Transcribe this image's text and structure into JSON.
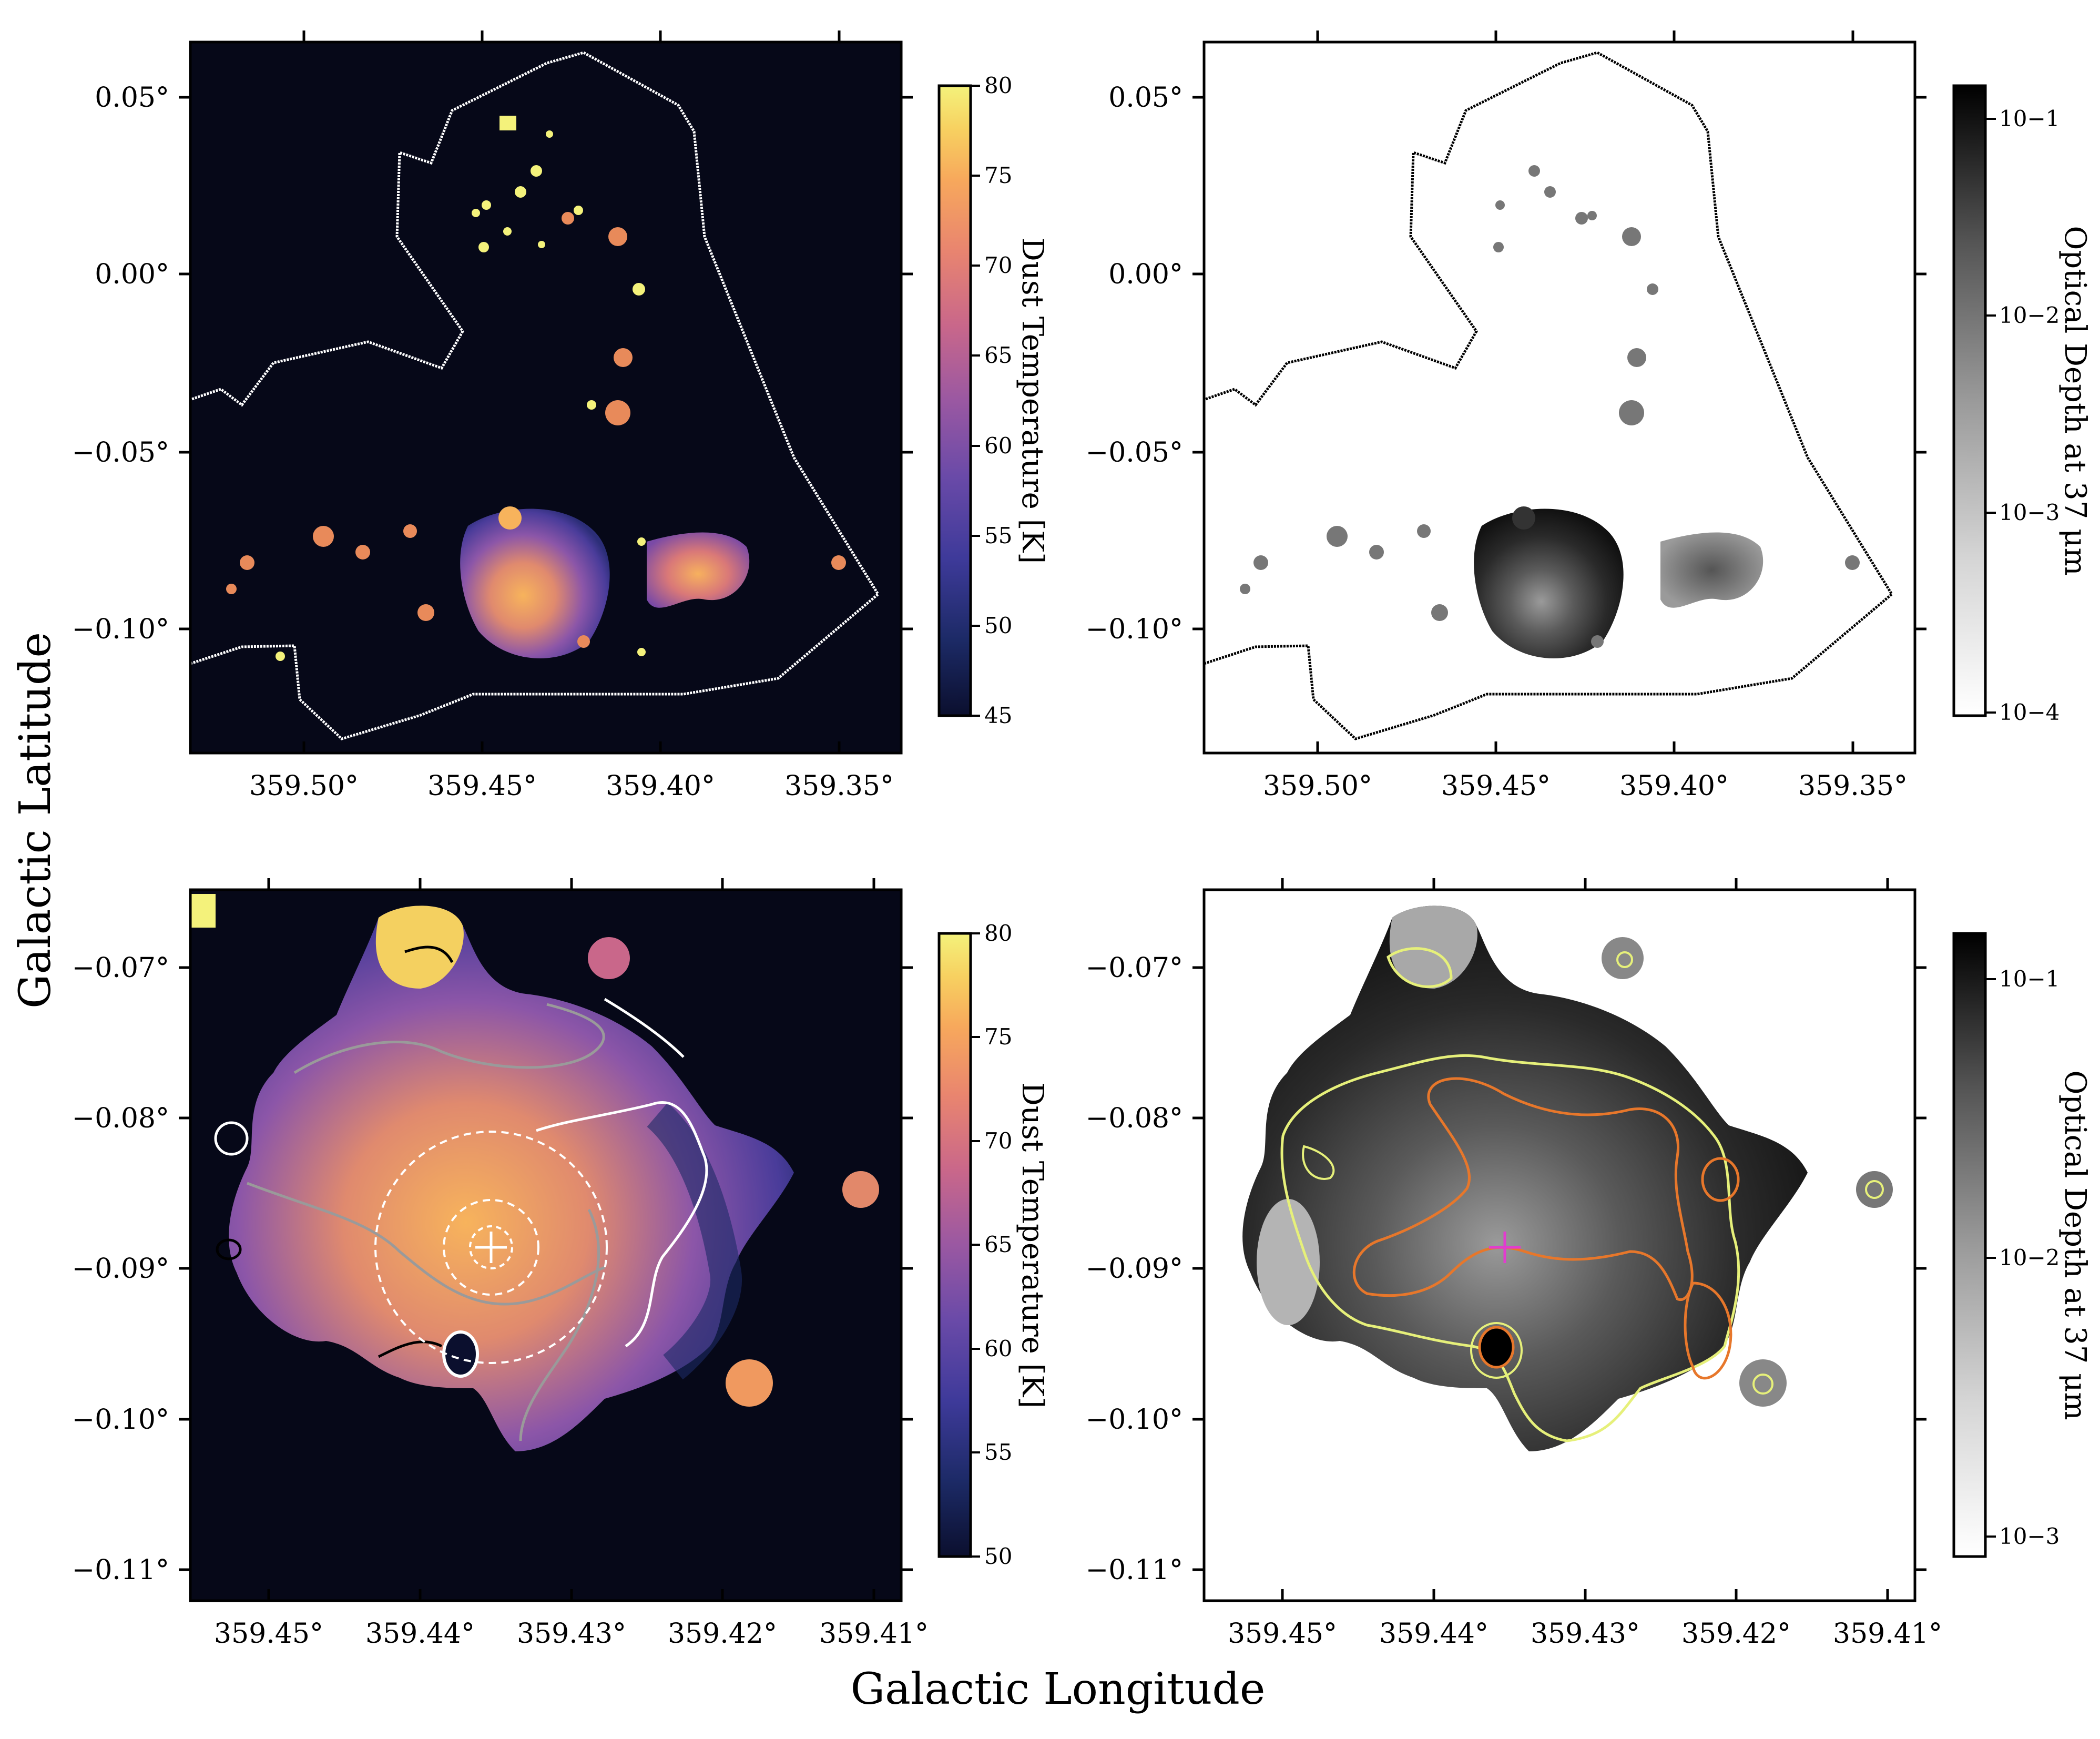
{
  "figure": {
    "xlabel": "Galactic Longitude",
    "ylabel": "Galactic Latitude"
  },
  "colormaps": {
    "temperature": [
      "#0b0f2e",
      "#1c2a66",
      "#3e3a9a",
      "#6a4aa8",
      "#9a58a2",
      "#c9678a",
      "#e9856f",
      "#f7a85c",
      "#f7d060",
      "#f4f27b"
    ],
    "depth": [
      "#ffffff",
      "#d9d9d9",
      "#aaaaaa",
      "#777777",
      "#444444",
      "#111111"
    ],
    "background_dark": "#060818",
    "contour_colors": {
      "white": "#ffffff",
      "gray": "#9a9a9a",
      "black": "#000000",
      "yellow": "#e6f07a",
      "orange": "#e7772b",
      "cross_white": "#ffffff",
      "cross_magenta": "#e23ccf"
    }
  },
  "chart_data": [
    {
      "type": "heatmap",
      "panel": "top-left",
      "quantity": "Dust Temperature",
      "xticks": [
        "359.50°",
        "359.45°",
        "359.40°",
        "359.35°"
      ],
      "yticks": [
        "0.05°",
        "0.00°",
        "−0.05°",
        "−0.10°"
      ],
      "xlim": [
        359.525,
        359.325
      ],
      "ylim": [
        -0.135,
        0.065
      ],
      "colorbar": {
        "label": "Dust Temperature [K]",
        "ticks": [
          "80",
          "75",
          "70",
          "65",
          "60",
          "55",
          "50",
          "45"
        ],
        "range": [
          45,
          80
        ]
      }
    },
    {
      "type": "heatmap",
      "panel": "top-right",
      "quantity": "Optical Depth",
      "xticks": [
        "359.50°",
        "359.45°",
        "359.40°",
        "359.35°"
      ],
      "yticks": [
        "0.05°",
        "0.00°",
        "−0.05°",
        "−0.10°"
      ],
      "xlim": [
        359.525,
        359.325
      ],
      "ylim": [
        -0.135,
        0.065
      ],
      "colorbar": {
        "label": "Optical Depth at 37 μm",
        "scale": "log",
        "ticks": [
          "10−1",
          "10−2",
          "10−3",
          "10−4"
        ],
        "range": [
          0.0001,
          0.15
        ]
      }
    },
    {
      "type": "heatmap",
      "panel": "bottom-left",
      "quantity": "Dust Temperature",
      "xticks": [
        "359.45°",
        "359.44°",
        "359.43°",
        "359.42°",
        "359.41°"
      ],
      "yticks": [
        "−0.07°",
        "−0.08°",
        "−0.09°",
        "−0.10°",
        "−0.11°"
      ],
      "xlim": [
        359.455,
        359.408
      ],
      "ylim": [
        -0.1115,
        -0.0645
      ],
      "colorbar": {
        "label": "Dust Temperature [K]",
        "ticks": [
          "80",
          "75",
          "70",
          "65",
          "60",
          "55",
          "50"
        ],
        "range": [
          50,
          80
        ]
      }
    },
    {
      "type": "heatmap",
      "panel": "bottom-right",
      "quantity": "Optical Depth",
      "xticks": [
        "359.45°",
        "359.44°",
        "359.43°",
        "359.42°",
        "359.41°"
      ],
      "yticks": [
        "−0.07°",
        "−0.08°",
        "−0.09°",
        "−0.10°",
        "−0.11°"
      ],
      "xlim": [
        359.455,
        359.408
      ],
      "ylim": [
        -0.1115,
        -0.0645
      ],
      "colorbar": {
        "label": "Optical Depth at 37 μm",
        "scale": "log",
        "ticks": [
          "10−1",
          "10−2",
          "10−3"
        ],
        "range": [
          0.0007,
          0.15
        ]
      }
    }
  ]
}
